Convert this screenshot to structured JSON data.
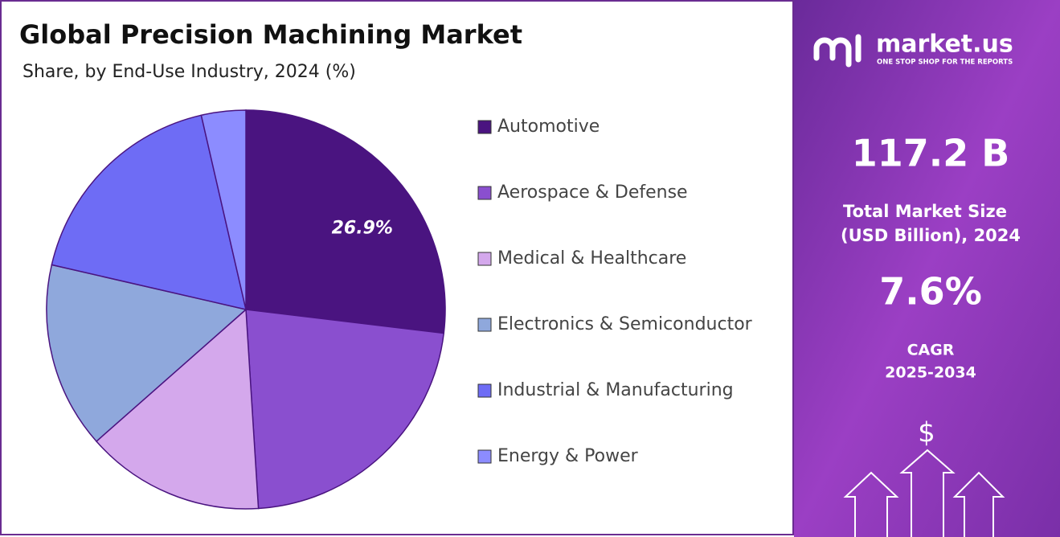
{
  "chart_data": {
    "type": "pie",
    "title": "Global Precision Machining Market",
    "subtitle": "Share, by End-Use Industry, 2024 (%)",
    "categories": [
      "Automotive",
      "Aerospace & Defense",
      "Medical & Healthcare",
      "Electronics & Semiconductor",
      "Industrial & Manufacturing",
      "Energy & Power"
    ],
    "values": [
      26.9,
      22.1,
      14.5,
      15.1,
      17.8,
      3.6
    ],
    "value_labels": [
      "26.9%",
      null,
      null,
      null,
      null,
      null
    ],
    "colors": [
      "#4a1480",
      "#8a4fcf",
      "#d4a8ec",
      "#8fa8dc",
      "#6e6cf5",
      "#8c8cff"
    ]
  },
  "side_panel": {
    "brand": "market.us",
    "tagline": "ONE STOP SHOP FOR THE REPORTS",
    "market_size": "117.2 B",
    "market_size_label_1": "Total Market Size",
    "market_size_label_2": "(USD Billion), 2024",
    "cagr": "7.6%",
    "cagr_label_1": "CAGR",
    "cagr_label_2": "2025-2034",
    "icon_symbol": "$"
  }
}
